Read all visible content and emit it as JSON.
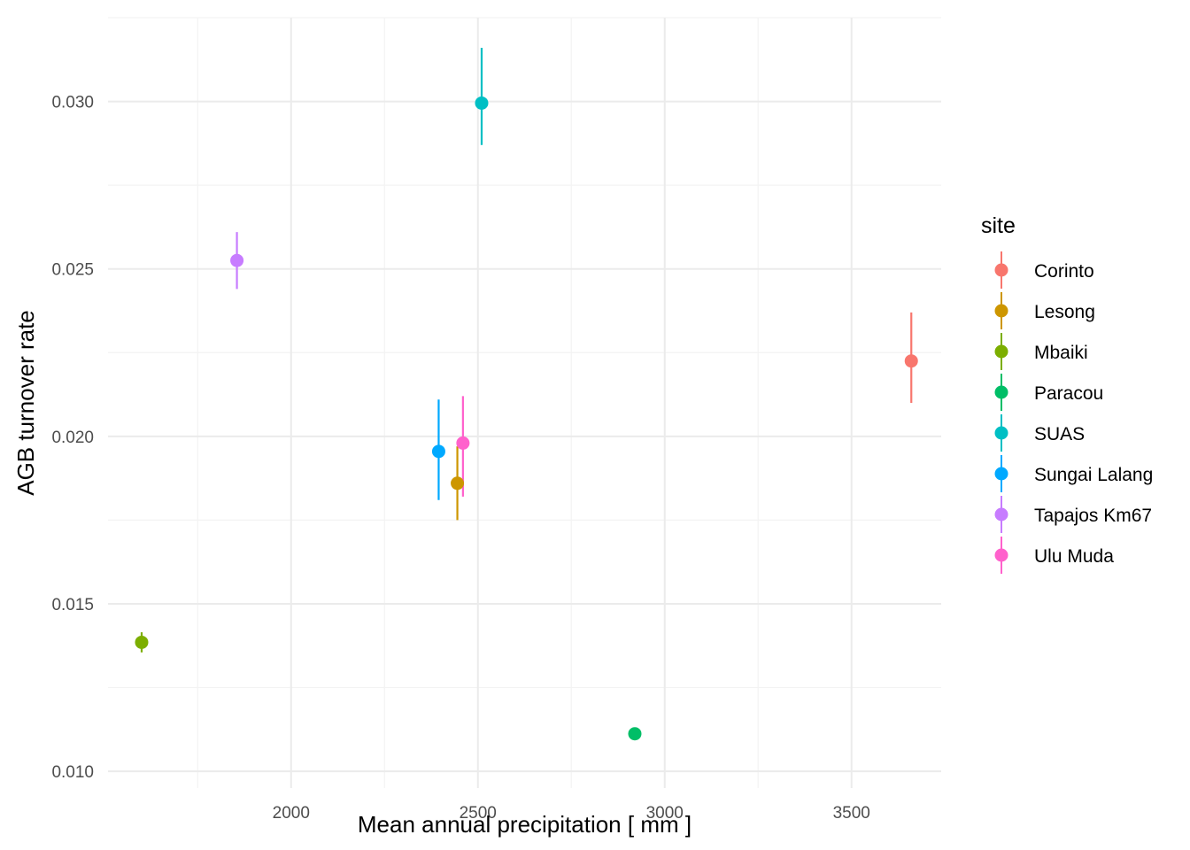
{
  "chart_data": {
    "type": "scatter",
    "title": "",
    "xlabel": "Mean annual precipitation [ mm ]",
    "ylabel": "AGB turnover rate",
    "xlim": [
      1510,
      3740
    ],
    "ylim": [
      0.0095,
      0.0325
    ],
    "x_ticks": [
      2000,
      2500,
      3000,
      3500
    ],
    "x_tick_labels": [
      "2000",
      "2500",
      "3000",
      "3500"
    ],
    "y_ticks": [
      0.01,
      0.015,
      0.02,
      0.025,
      0.03
    ],
    "y_tick_labels": [
      "0.010",
      "0.015",
      "0.020",
      "0.025",
      "0.030"
    ],
    "grid": true,
    "legend": {
      "title": "site",
      "position": "right"
    },
    "series": [
      {
        "name": "Corinto",
        "color": "#F8766D",
        "x": 3660,
        "y": 0.02225,
        "ymin": 0.021,
        "ymax": 0.0237
      },
      {
        "name": "Lesong",
        "color": "#CD9600",
        "x": 2445,
        "y": 0.0186,
        "ymin": 0.0175,
        "ymax": 0.0197
      },
      {
        "name": "Mbaiki",
        "color": "#7CAE00",
        "x": 1600,
        "y": 0.01385,
        "ymin": 0.01355,
        "ymax": 0.01415
      },
      {
        "name": "Paracou",
        "color": "#00BE67",
        "x": 2920,
        "y": 0.01112,
        "ymin": 0.01098,
        "ymax": 0.01126
      },
      {
        "name": "SUAS",
        "color": "#00BFC4",
        "x": 2510,
        "y": 0.02995,
        "ymin": 0.0287,
        "ymax": 0.0316
      },
      {
        "name": "Sungai Lalang",
        "color": "#00A9FF",
        "x": 2395,
        "y": 0.01955,
        "ymin": 0.0181,
        "ymax": 0.0211
      },
      {
        "name": "Tapajos Km67",
        "color": "#C77CFF",
        "x": 1855,
        "y": 0.02525,
        "ymin": 0.0244,
        "ymax": 0.0261
      },
      {
        "name": "Ulu Muda",
        "color": "#FF61CC",
        "x": 2460,
        "y": 0.0198,
        "ymin": 0.0182,
        "ymax": 0.0212
      }
    ]
  }
}
